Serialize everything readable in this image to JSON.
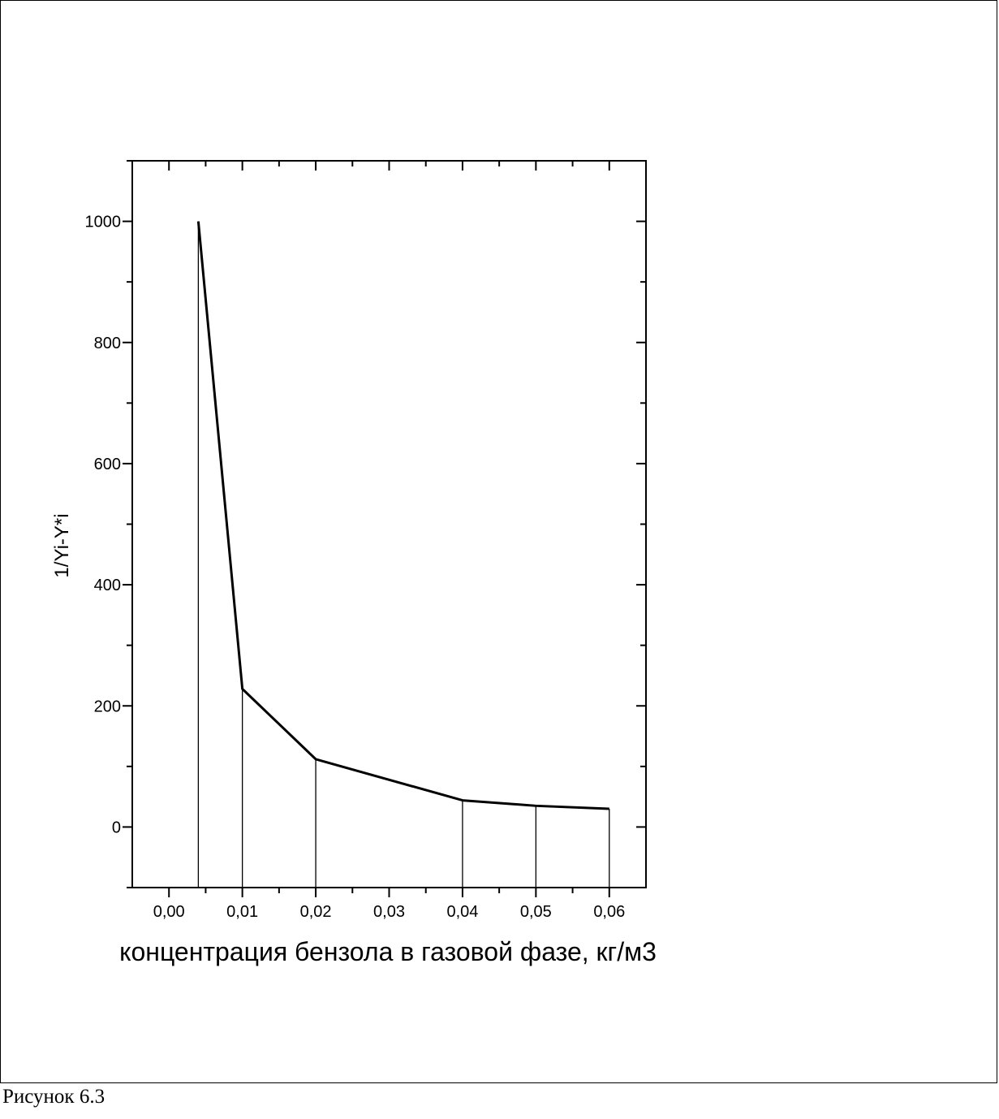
{
  "caption": "Рисунок 6.3",
  "chart_data": {
    "type": "line",
    "title": "",
    "xlabel": "концентрация бензола в газовой фазе, кг/м3",
    "ylabel": "1/Yi-Y*i",
    "xlim": [
      -0.005,
      0.065
    ],
    "ylim": [
      -100,
      1100
    ],
    "x_ticks": [
      0.0,
      0.01,
      0.02,
      0.03,
      0.04,
      0.05,
      0.06
    ],
    "x_tick_labels": [
      "0,00",
      "0,01",
      "0,02",
      "0,03",
      "0,04",
      "0,05",
      "0,06"
    ],
    "y_ticks": [
      0,
      200,
      400,
      600,
      800,
      1000
    ],
    "y_tick_labels": [
      "0",
      "200",
      "400",
      "600",
      "800",
      "1000"
    ],
    "grid": false,
    "series": [
      {
        "x": [
          0.004,
          0.01,
          0.02,
          0.04,
          0.05,
          0.06
        ],
        "y": [
          1000,
          228,
          112,
          44,
          35,
          30
        ]
      }
    ],
    "drop_lines": true,
    "line_color": "#000000"
  }
}
